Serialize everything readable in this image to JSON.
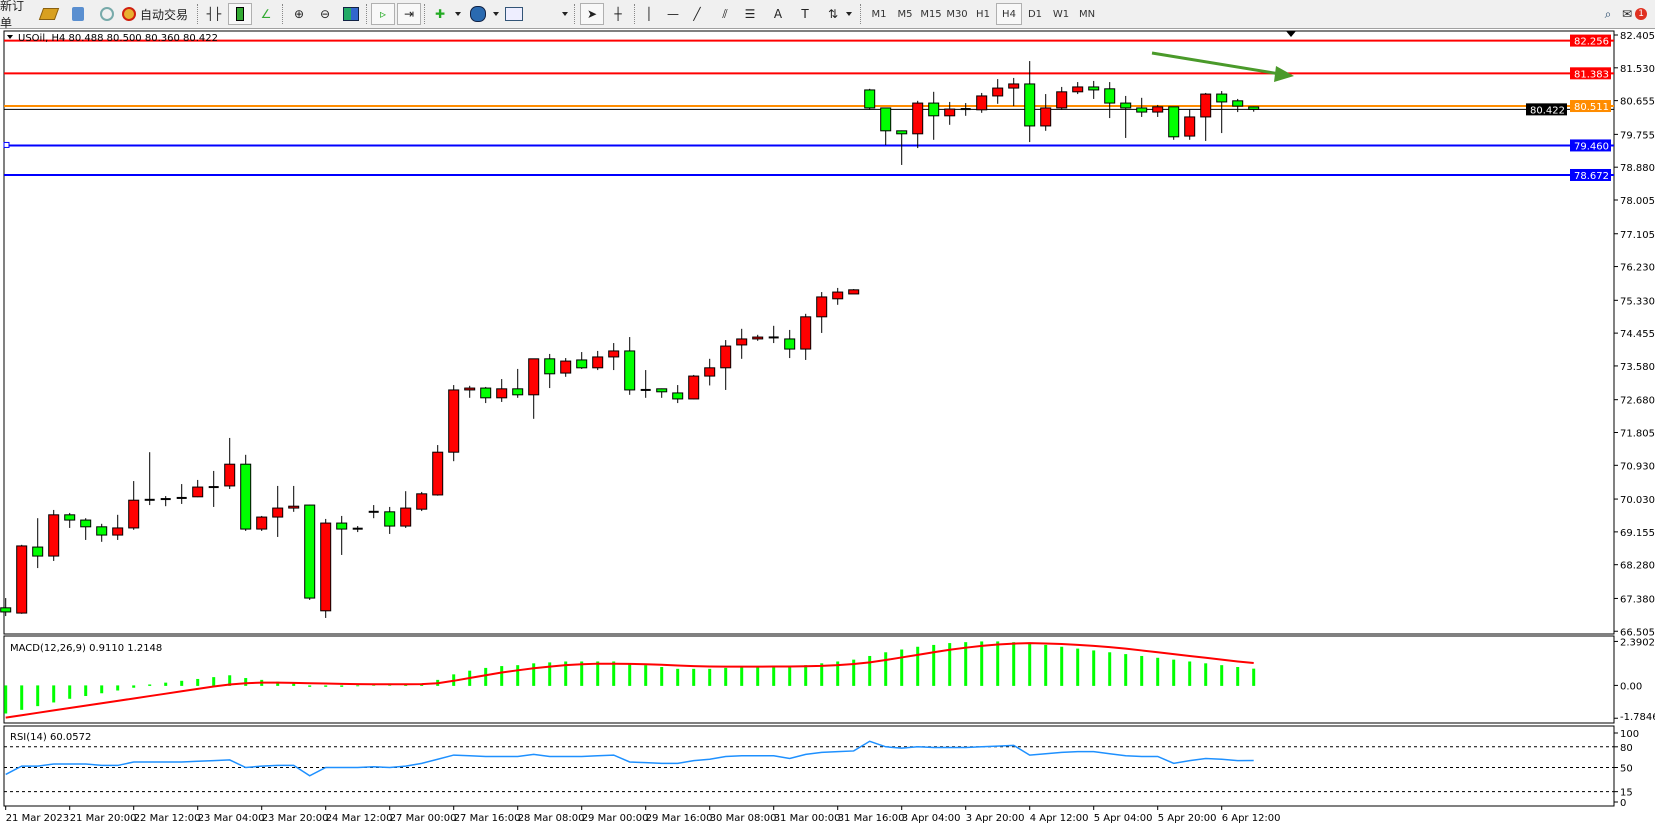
{
  "toolbar": {
    "new_order": "新订单",
    "auto_trading": "自动交易",
    "timeframes": [
      "M1",
      "M5",
      "M15",
      "M30",
      "H1",
      "H4",
      "D1",
      "W1",
      "MN"
    ],
    "active_timeframe": "H4",
    "notification_count": "1",
    "icons": [
      "market-watch-icon",
      "data-window-icon",
      "signals-icon",
      "auto-trading-icon",
      "bar-chart-icon",
      "candlestick-icon",
      "line-chart-icon",
      "zoom-in-icon",
      "zoom-out-icon",
      "tile-windows-icon",
      "auto-scroll-icon",
      "chart-shift-icon",
      "indicators-icon",
      "periods-icon",
      "templates-icon",
      "cursor-icon",
      "crosshair-icon",
      "vertical-line-icon",
      "horizontal-line-icon",
      "trendline-icon",
      "equidistant-channel-icon",
      "fibonacci-icon",
      "text-icon",
      "text-label-icon",
      "arrows-icon",
      "search-icon",
      "notification-icon"
    ]
  },
  "chart": {
    "header": "USOil, H4  80.488 80.500 80.360 80.422",
    "colors": {
      "bull": "#ff0000",
      "bear": "#00ff00",
      "resistance": "#ff0000",
      "support": "#0000ff",
      "pivot": "#ff8c00",
      "macd_hist": "#00ff00",
      "macd_signal": "#ff0000",
      "rsi": "#1e90ff",
      "arrow": "#4a9a2a"
    },
    "price_ticks": [
      "82.405",
      "81.530",
      "80.655",
      "79.755",
      "78.880",
      "78.005",
      "77.105",
      "76.230",
      "75.330",
      "74.455",
      "73.580",
      "72.680",
      "71.805",
      "70.930",
      "70.030",
      "69.155",
      "68.280",
      "67.380",
      "66.505"
    ],
    "lines": [
      {
        "price": 82.256,
        "label": "82.256",
        "color": "#ff0000"
      },
      {
        "price": 81.383,
        "label": "81.383",
        "color": "#ff0000"
      },
      {
        "price": 80.511,
        "label": "80.511",
        "color": "#ff8c00"
      },
      {
        "price": 79.46,
        "label": "79.460",
        "color": "#0000ff"
      },
      {
        "price": 78.672,
        "label": "78.672",
        "color": "#0000ff"
      }
    ],
    "bid": {
      "price": 80.422,
      "label": "80.422"
    },
    "time_labels": [
      "21 Mar 2023",
      "21 Mar 20:00",
      "22 Mar 12:00",
      "23 Mar 04:00",
      "23 Mar 20:00",
      "24 Mar 12:00",
      "27 Mar 00:00",
      "27 Mar 16:00",
      "28 Mar 08:00",
      "29 Mar 00:00",
      "29 Mar 16:00",
      "30 Mar 08:00",
      "31 Mar 00:00",
      "31 Mar 16:00",
      "3 Apr 04:00",
      "3 Apr 20:00",
      "4 Apr 12:00",
      "5 Apr 04:00",
      "5 Apr 20:00",
      "6 Apr 12:00"
    ],
    "macd": {
      "label": "MACD(12,26,9) 0.9110 1.2148",
      "ticks": [
        "2.3902",
        "0.00",
        "-1.7846"
      ]
    },
    "rsi": {
      "label": "RSI(14) 60.0572",
      "ticks": [
        "100",
        "80",
        "50",
        "15",
        "0"
      ],
      "levels": [
        80,
        50,
        15
      ]
    }
  },
  "chart_data": {
    "type": "candlestick",
    "symbol": "USOil",
    "timeframe": "H4",
    "ylim": [
      66.505,
      82.405
    ],
    "ohlc": [
      [
        67.13,
        67.39,
        66.91,
        67.02
      ],
      [
        66.99,
        68.81,
        66.97,
        68.78
      ],
      [
        68.75,
        69.52,
        68.19,
        68.51
      ],
      [
        68.51,
        69.74,
        68.38,
        69.61
      ],
      [
        69.61,
        69.66,
        69.26,
        69.47
      ],
      [
        69.47,
        69.52,
        68.94,
        69.29
      ],
      [
        69.29,
        69.37,
        68.89,
        69.07
      ],
      [
        69.07,
        69.61,
        68.94,
        69.26
      ],
      [
        69.26,
        70.51,
        69.21,
        70.0
      ],
      [
        70.0,
        71.28,
        69.87,
        70.01
      ],
      [
        70.02,
        70.11,
        69.84,
        70.03
      ],
      [
        70.03,
        70.43,
        69.9,
        70.06
      ],
      [
        70.09,
        70.54,
        70.08,
        70.35
      ],
      [
        70.35,
        70.78,
        69.82,
        70.34
      ],
      [
        70.38,
        71.66,
        70.3,
        70.96
      ],
      [
        70.96,
        71.21,
        69.18,
        69.23
      ],
      [
        69.23,
        69.58,
        69.18,
        69.55
      ],
      [
        69.55,
        70.38,
        69.02,
        69.79
      ],
      [
        69.79,
        70.38,
        69.69,
        69.84
      ],
      [
        69.87,
        69.88,
        67.34,
        67.39
      ],
      [
        67.05,
        69.5,
        66.86,
        69.39
      ],
      [
        69.39,
        69.58,
        68.54,
        69.23
      ],
      [
        69.23,
        69.31,
        69.15,
        69.24
      ],
      [
        69.69,
        69.87,
        69.52,
        69.69
      ],
      [
        69.69,
        69.82,
        69.1,
        69.31
      ],
      [
        69.31,
        70.24,
        69.26,
        69.79
      ],
      [
        69.76,
        70.22,
        69.71,
        70.17
      ],
      [
        70.14,
        71.47,
        70.12,
        71.28
      ],
      [
        71.28,
        73.07,
        71.04,
        72.94
      ],
      [
        72.94,
        73.05,
        72.73,
        72.99
      ],
      [
        72.99,
        73.02,
        72.59,
        72.73
      ],
      [
        72.73,
        73.23,
        72.62,
        72.97
      ],
      [
        72.97,
        73.5,
        72.73,
        72.81
      ],
      [
        72.81,
        73.77,
        72.17,
        73.77
      ],
      [
        73.77,
        73.9,
        72.99,
        73.37
      ],
      [
        73.39,
        73.79,
        73.29,
        73.71
      ],
      [
        73.74,
        73.95,
        73.5,
        73.53
      ],
      [
        73.53,
        73.98,
        73.47,
        73.82
      ],
      [
        73.82,
        74.19,
        73.47,
        73.98
      ],
      [
        73.98,
        74.35,
        72.81,
        72.94
      ],
      [
        72.94,
        73.47,
        72.73,
        72.93
      ],
      [
        72.97,
        72.98,
        72.73,
        72.89
      ],
      [
        72.86,
        73.07,
        72.59,
        72.7
      ],
      [
        72.7,
        73.34,
        72.69,
        73.31
      ],
      [
        73.31,
        73.77,
        73.06,
        73.53
      ],
      [
        73.53,
        74.27,
        72.94,
        74.11
      ],
      [
        74.14,
        74.57,
        73.77,
        74.3
      ],
      [
        74.3,
        74.41,
        74.25,
        74.35
      ],
      [
        74.34,
        74.65,
        74.19,
        74.33
      ],
      [
        74.3,
        74.54,
        73.79,
        74.03
      ],
      [
        74.03,
        74.97,
        73.74,
        74.89
      ],
      [
        74.89,
        75.55,
        74.46,
        75.42
      ],
      [
        75.37,
        75.66,
        75.21,
        75.55
      ],
      [
        75.5,
        75.63,
        75.5,
        75.61
      ],
      [
        80.94,
        80.97,
        80.41,
        80.46
      ],
      [
        80.46,
        80.46,
        79.47,
        79.85
      ],
      [
        79.85,
        79.86,
        78.94,
        79.77
      ],
      [
        79.77,
        80.65,
        79.39,
        80.59
      ],
      [
        80.59,
        80.89,
        79.61,
        80.25
      ],
      [
        80.25,
        80.62,
        80.01,
        80.43
      ],
      [
        80.43,
        80.59,
        80.25,
        80.41
      ],
      [
        80.41,
        80.86,
        80.33,
        80.78
      ],
      [
        80.78,
        81.23,
        80.57,
        80.99
      ],
      [
        80.99,
        81.26,
        80.51,
        81.1
      ],
      [
        81.1,
        81.71,
        79.55,
        79.98
      ],
      [
        79.98,
        80.83,
        79.85,
        80.46
      ],
      [
        80.46,
        81.02,
        80.41,
        80.89
      ],
      [
        80.89,
        81.15,
        80.83,
        81.02
      ],
      [
        81.02,
        81.18,
        80.7,
        80.94
      ],
      [
        80.97,
        81.15,
        80.19,
        80.59
      ],
      [
        80.59,
        80.78,
        79.66,
        80.46
      ],
      [
        80.46,
        80.73,
        80.22,
        80.35
      ],
      [
        80.35,
        80.54,
        80.22,
        80.49
      ],
      [
        80.49,
        80.49,
        79.61,
        79.69
      ],
      [
        79.71,
        80.41,
        79.61,
        80.22
      ],
      [
        80.22,
        80.86,
        79.58,
        80.83
      ],
      [
        80.83,
        80.91,
        79.79,
        80.62
      ],
      [
        80.65,
        80.7,
        80.35,
        80.51
      ],
      [
        80.488,
        80.5,
        80.36,
        80.422
      ]
    ],
    "macd_hist": [
      -1.5,
      -1.3,
      -1.1,
      -0.9,
      -0.7,
      -0.55,
      -0.4,
      -0.25,
      -0.1,
      0.05,
      0.15,
      0.25,
      0.35,
      0.45,
      0.55,
      0.4,
      0.3,
      0.2,
      0.12,
      -0.05,
      -0.05,
      -0.05,
      -0.02,
      0.0,
      0.0,
      0.05,
      0.1,
      0.3,
      0.6,
      0.8,
      0.95,
      1.05,
      1.1,
      1.2,
      1.25,
      1.3,
      1.3,
      1.3,
      1.3,
      1.2,
      1.1,
      1.0,
      0.9,
      0.9,
      0.9,
      0.95,
      1.0,
      1.05,
      1.05,
      1.05,
      1.1,
      1.2,
      1.3,
      1.4,
      1.6,
      1.8,
      1.95,
      2.1,
      2.2,
      2.3,
      2.35,
      2.39,
      2.39,
      2.35,
      2.3,
      2.2,
      2.1,
      2.0,
      1.9,
      1.8,
      1.7,
      1.6,
      1.5,
      1.4,
      1.3,
      1.2,
      1.1,
      1.0,
      0.911
    ],
    "macd_signal": [
      -1.75,
      -1.62,
      -1.49,
      -1.36,
      -1.23,
      -1.1,
      -0.97,
      -0.84,
      -0.71,
      -0.58,
      -0.45,
      -0.32,
      -0.19,
      -0.06,
      0.05,
      0.12,
      0.15,
      0.15,
      0.14,
      0.12,
      0.1,
      0.08,
      0.07,
      0.06,
      0.06,
      0.06,
      0.07,
      0.12,
      0.25,
      0.4,
      0.55,
      0.7,
      0.82,
      0.93,
      1.02,
      1.1,
      1.15,
      1.18,
      1.18,
      1.17,
      1.15,
      1.12,
      1.08,
      1.05,
      1.03,
      1.02,
      1.02,
      1.02,
      1.03,
      1.03,
      1.04,
      1.06,
      1.1,
      1.16,
      1.25,
      1.38,
      1.52,
      1.66,
      1.8,
      1.94,
      2.05,
      2.15,
      2.22,
      2.27,
      2.3,
      2.28,
      2.25,
      2.2,
      2.15,
      2.08,
      2.0,
      1.9,
      1.8,
      1.7,
      1.6,
      1.5,
      1.4,
      1.3,
      1.2148
    ],
    "rsi": [
      40,
      52,
      52,
      55,
      55,
      55,
      53,
      53,
      58,
      58,
      58,
      58,
      59,
      60,
      61,
      50,
      52,
      53,
      53,
      38,
      50,
      50,
      50,
      51,
      50,
      52,
      56,
      62,
      68,
      67,
      66,
      66,
      66,
      69,
      66,
      66,
      66,
      67,
      68,
      58,
      57,
      56,
      56,
      60,
      62,
      66,
      67,
      67,
      67,
      63,
      69,
      72,
      73,
      74,
      88,
      80,
      78,
      80,
      79,
      79,
      79,
      80,
      81,
      82,
      68,
      70,
      72,
      73,
      73,
      70,
      67,
      66,
      66,
      56,
      60,
      63,
      62,
      60,
      60.0572
    ]
  }
}
